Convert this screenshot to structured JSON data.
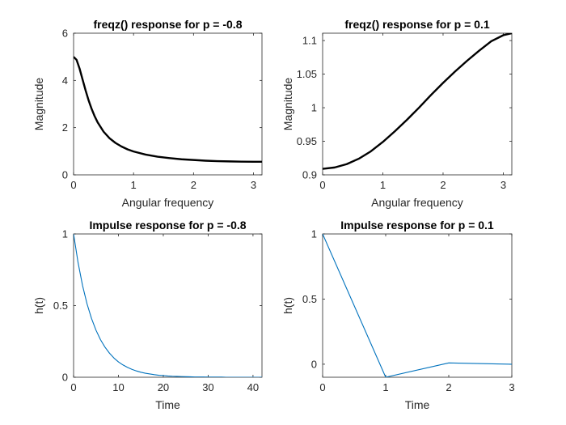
{
  "chart_data": [
    {
      "type": "line",
      "title": "freqz() response for p = -0.8",
      "xlabel": "Angular frequency",
      "ylabel": "Magnitude",
      "xlim": [
        0,
        3.1416
      ],
      "ylim": [
        0,
        6
      ],
      "xticks": [
        0,
        1,
        2,
        3
      ],
      "yticks": [
        0,
        2,
        4,
        6
      ],
      "grid": false,
      "series": [
        {
          "color": "#000000",
          "x": [
            0,
            0.05,
            0.1,
            0.15,
            0.2,
            0.25,
            0.3,
            0.35,
            0.4,
            0.5,
            0.6,
            0.7,
            0.8,
            0.9,
            1.0,
            1.2,
            1.4,
            1.6,
            1.8,
            2.0,
            2.2,
            2.4,
            2.6,
            2.8,
            3.0,
            3.1416
          ],
          "y": [
            5.0,
            4.87,
            4.5,
            4.04,
            3.58,
            3.16,
            2.8,
            2.49,
            2.23,
            1.83,
            1.55,
            1.35,
            1.2,
            1.08,
            0.99,
            0.86,
            0.77,
            0.71,
            0.66,
            0.63,
            0.6,
            0.58,
            0.57,
            0.56,
            0.556,
            0.556
          ]
        }
      ]
    },
    {
      "type": "line",
      "title": "freqz() response for p = 0.1",
      "xlabel": "Angular frequency",
      "ylabel": "Magnitude",
      "xlim": [
        0,
        3.1416
      ],
      "ylim": [
        0.9,
        1.111
      ],
      "xticks": [
        0,
        1,
        2,
        3
      ],
      "yticks": [
        0.9,
        0.95,
        1,
        1.05,
        1.1
      ],
      "grid": false,
      "series": [
        {
          "color": "#000000",
          "x": [
            0,
            0.2,
            0.4,
            0.6,
            0.8,
            1.0,
            1.2,
            1.4,
            1.6,
            1.8,
            2.0,
            2.2,
            2.4,
            2.6,
            2.8,
            3.0,
            3.1416
          ],
          "y": [
            0.909,
            0.911,
            0.916,
            0.924,
            0.935,
            0.949,
            0.965,
            0.982,
            1.0,
            1.019,
            1.037,
            1.054,
            1.07,
            1.085,
            1.099,
            1.108,
            1.111
          ]
        }
      ]
    },
    {
      "type": "line",
      "title": "Impulse response for p = -0.8",
      "xlabel": "Time",
      "ylabel": "h(t)",
      "xlim": [
        0,
        42
      ],
      "ylim": [
        0,
        1
      ],
      "xticks": [
        0,
        10,
        20,
        30,
        40
      ],
      "yticks": [
        0,
        0.5,
        1
      ],
      "grid": false,
      "series": [
        {
          "color": "#0072BD",
          "x": [
            0,
            1,
            2,
            3,
            4,
            5,
            6,
            7,
            8,
            9,
            10,
            11,
            12,
            13,
            14,
            15,
            16,
            17,
            18,
            19,
            20,
            21,
            22,
            23,
            24,
            25,
            26,
            27,
            28,
            29,
            30,
            31,
            32,
            33,
            34,
            35,
            36,
            37,
            38,
            39,
            40,
            41,
            42
          ],
          "y": [
            1.0,
            0.8,
            0.64,
            0.512,
            0.41,
            0.328,
            0.262,
            0.21,
            0.168,
            0.134,
            0.107,
            0.086,
            0.069,
            0.055,
            0.044,
            0.035,
            0.028,
            0.023,
            0.018,
            0.014,
            0.012,
            0.009,
            0.007,
            0.006,
            0.005,
            0.004,
            0.003,
            0.002,
            0.002,
            0.002,
            0.001,
            0.001,
            0.001,
            0.001,
            0.0,
            0.0,
            0.0,
            0.0,
            0.0,
            0.0,
            0.0,
            0.0,
            0.0
          ]
        }
      ]
    },
    {
      "type": "line",
      "title": "Impulse response for p = 0.1",
      "xlabel": "Time",
      "ylabel": "h(t)",
      "xlim": [
        0,
        3
      ],
      "ylim": [
        -0.1,
        1
      ],
      "xticks": [
        0,
        1,
        2,
        3
      ],
      "yticks": [
        0,
        0.5,
        1
      ],
      "grid": false,
      "series": [
        {
          "color": "#0072BD",
          "x": [
            0,
            1,
            2,
            3
          ],
          "y": [
            1.0,
            -0.1,
            0.01,
            0.0
          ]
        }
      ]
    }
  ]
}
